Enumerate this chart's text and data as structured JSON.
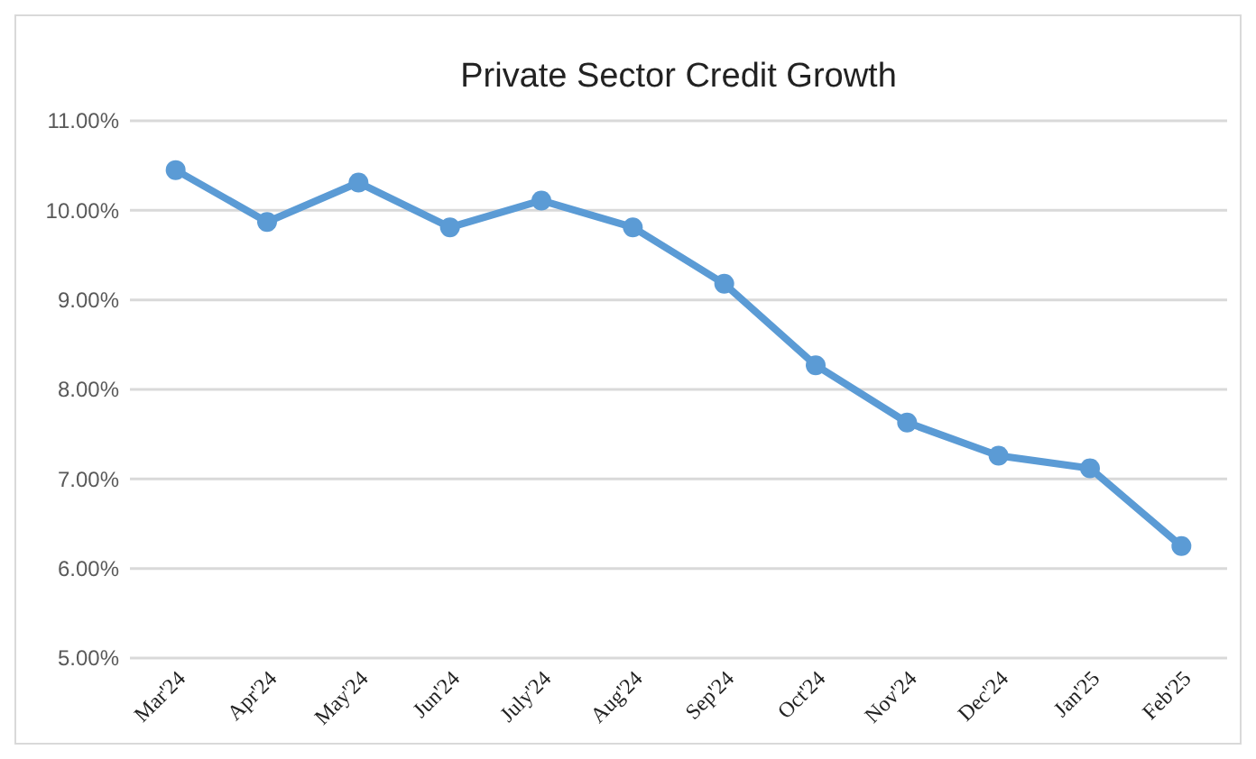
{
  "chart_data": {
    "type": "line",
    "title": "Private Sector Credit Growth",
    "categories": [
      "Mar'24",
      "Apr'24",
      "May'24",
      "Jun'24",
      "July'24",
      "Aug'24",
      "Sep'24",
      "Oct'24",
      "Nov'24",
      "Dec'24",
      "Jan'25",
      "Feb'25"
    ],
    "series": [
      {
        "color": "#5b9bd5",
        "values": [
          10.45,
          9.87,
          10.31,
          9.81,
          10.11,
          9.81,
          9.18,
          8.27,
          7.63,
          7.26,
          7.12,
          6.25
        ]
      }
    ],
    "ylim": [
      5,
      11
    ],
    "yticks": [
      {
        "value": 5,
        "label": "5.00%"
      },
      {
        "value": 6,
        "label": "6.00%"
      },
      {
        "value": 7,
        "label": "7.00%"
      },
      {
        "value": 8,
        "label": "8.00%"
      },
      {
        "value": 9,
        "label": "9.00%"
      },
      {
        "value": 10,
        "label": "10.00%"
      },
      {
        "value": 11,
        "label": "11.00%"
      }
    ],
    "grid": "y",
    "marker": "circle",
    "line_style": "solid"
  }
}
